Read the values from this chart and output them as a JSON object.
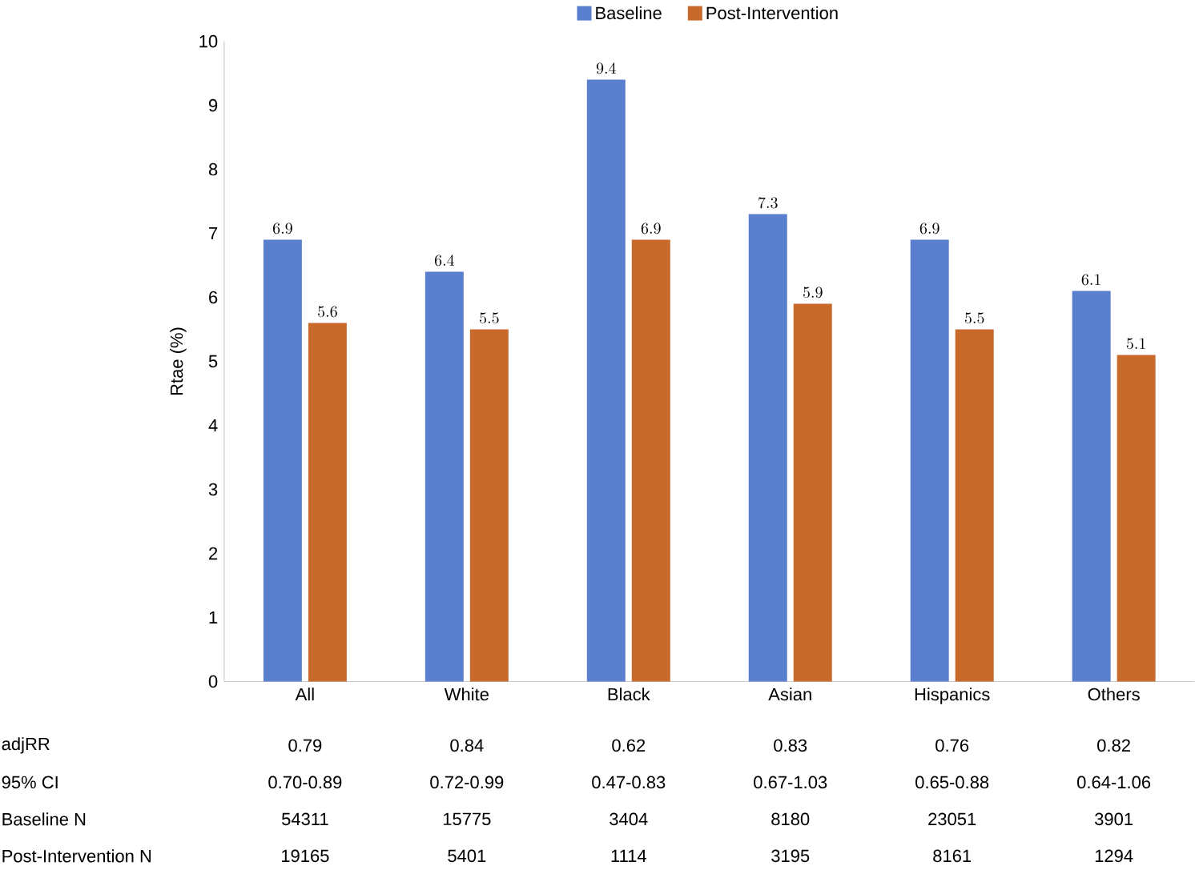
{
  "chart_data": {
    "type": "bar",
    "ylabel": "Rtae (%)",
    "categories": [
      "All",
      "White",
      "Black",
      "Asian",
      "Hispanics",
      "Others"
    ],
    "series": [
      {
        "name": "Baseline",
        "color": "#5b7fcf",
        "values": [
          6.9,
          6.4,
          9.4,
          7.3,
          6.9,
          6.1
        ]
      },
      {
        "name": "Post-Intervention",
        "color": "#c76a2c",
        "values": [
          5.6,
          5.5,
          6.9,
          5.9,
          5.5,
          5.1
        ]
      }
    ],
    "ylim": [
      0,
      10
    ],
    "yticks": [
      0,
      1,
      2,
      3,
      4,
      5,
      6,
      7,
      8,
      9,
      10
    ],
    "data_labels": true,
    "legend": "top",
    "grid": false,
    "annotations": [
      "adjRR",
      "0.79",
      "0.84",
      "0.62",
      "0.83",
      "0.76",
      "0.82",
      "95% CI",
      "0.70-0.89",
      "0.72-0.99",
      "0.47-0.83",
      "0.67-1.03",
      "0.65-0.88",
      "0.64-1.06",
      "Baseline N",
      "54311",
      "15775",
      "3404",
      "8180",
      "23051",
      "3901",
      "Post-Intervention N",
      "19165",
      "5401",
      "1114",
      "3195",
      "8161",
      "1294"
    ]
  }
}
